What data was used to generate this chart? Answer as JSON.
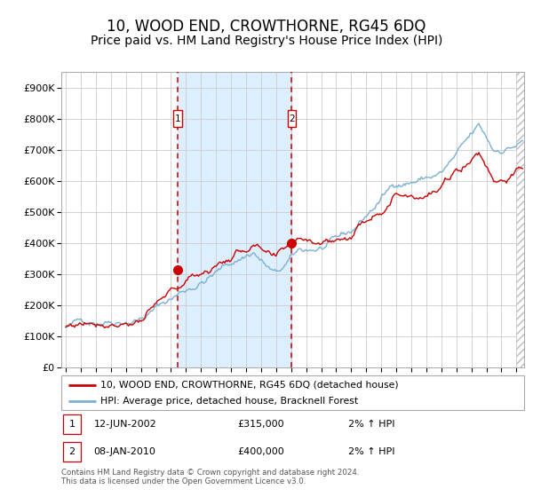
{
  "title": "10, WOOD END, CROWTHORNE, RG45 6DQ",
  "subtitle": "Price paid vs. HM Land Registry's House Price Index (HPI)",
  "title_fontsize": 12,
  "subtitle_fontsize": 10,
  "line1_label": "10, WOOD END, CROWTHORNE, RG45 6DQ (detached house)",
  "line2_label": "HPI: Average price, detached house, Bracknell Forest",
  "line1_color": "#cc0000",
  "line2_color": "#7bafd4",
  "shaded_region_color": "#ddeeff",
  "grid_color": "#cccccc",
  "event1_date_x": 2002.44,
  "event1_price": 315000,
  "event1_label": "12-JUN-2002",
  "event1_amount": "£315,000",
  "event1_hpi": "2% ↑ HPI",
  "event2_date_x": 2010.03,
  "event2_price": 400000,
  "event2_label": "08-JAN-2010",
  "event2_amount": "£400,000",
  "event2_hpi": "2% ↑ HPI",
  "footer": "Contains HM Land Registry data © Crown copyright and database right 2024.\nThis data is licensed under the Open Government Licence v3.0.",
  "ylim": [
    0,
    950000
  ],
  "yticks": [
    0,
    100000,
    200000,
    300000,
    400000,
    500000,
    600000,
    700000,
    800000,
    900000
  ],
  "ytick_labels": [
    "£0",
    "£100K",
    "£200K",
    "£300K",
    "£400K",
    "£500K",
    "£600K",
    "£700K",
    "£800K",
    "£900K"
  ],
  "xlim_start": 1994.7,
  "xlim_end": 2025.5
}
